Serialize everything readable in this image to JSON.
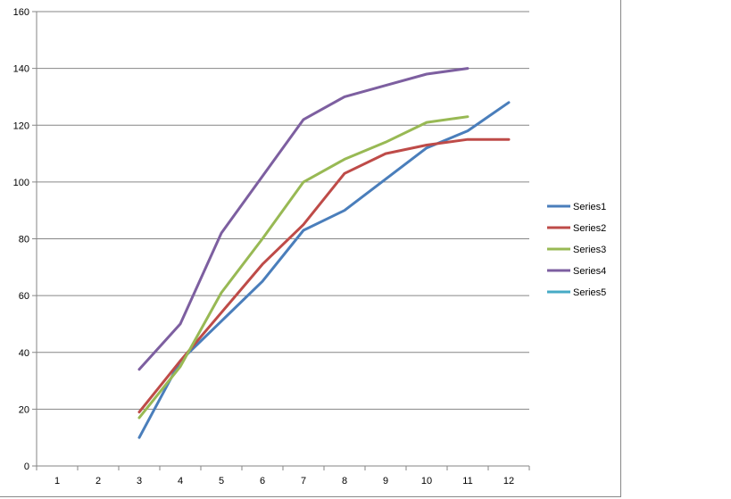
{
  "chart_data": {
    "type": "line",
    "categories": [
      "1",
      "2",
      "3",
      "4",
      "5",
      "6",
      "7",
      "8",
      "9",
      "10",
      "11",
      "12"
    ],
    "ylim": [
      0,
      160
    ],
    "yticks": [
      0,
      20,
      40,
      60,
      80,
      100,
      120,
      140,
      160
    ],
    "grid": true,
    "legend_position": "right",
    "series": [
      {
        "name": "Series1",
        "color": "#4a7ebb",
        "values": [
          null,
          null,
          10,
          37,
          51,
          65,
          83,
          90,
          101,
          112,
          118,
          128
        ]
      },
      {
        "name": "Series2",
        "color": "#be4b48",
        "values": [
          null,
          null,
          19,
          37,
          54,
          71,
          85,
          103,
          110,
          113,
          115,
          115
        ]
      },
      {
        "name": "Series3",
        "color": "#98b954",
        "values": [
          null,
          null,
          17,
          35,
          61,
          80,
          100,
          108,
          114,
          121,
          123,
          null
        ]
      },
      {
        "name": "Series4",
        "color": "#7d5fa0",
        "values": [
          null,
          null,
          34,
          50,
          82,
          102,
          122,
          130,
          134,
          138,
          140,
          null
        ]
      },
      {
        "name": "Series5",
        "color": "#46aac5",
        "values": [
          null,
          null,
          null,
          null,
          null,
          null,
          null,
          null,
          null,
          null,
          null,
          null
        ]
      }
    ]
  }
}
